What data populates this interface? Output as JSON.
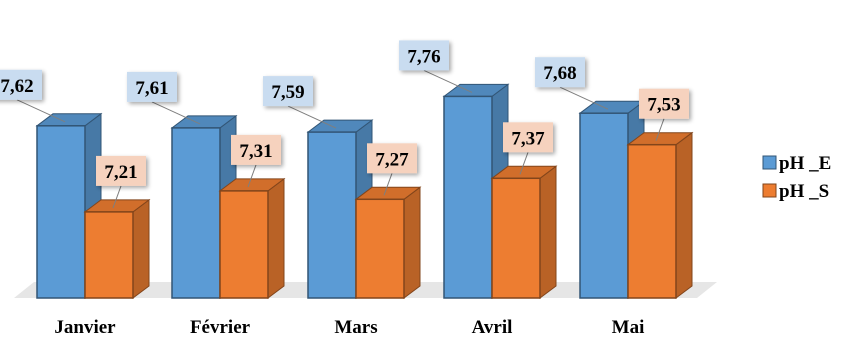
{
  "chart_data": {
    "type": "bar",
    "categories": [
      "Janvier",
      "Février",
      "Mars",
      "Avril",
      "Mai"
    ],
    "series": [
      {
        "name": "pH _E",
        "values": [
          7.62,
          7.61,
          7.59,
          7.76,
          7.68
        ],
        "labels": [
          "7,62",
          "7,61",
          "7,59",
          "7,76",
          "7,68"
        ],
        "color": "#5B9BD5",
        "label_bg": "#C9DCF0"
      },
      {
        "name": "pH _S",
        "values": [
          7.21,
          7.31,
          7.27,
          7.37,
          7.53
        ],
        "labels": [
          "7,21",
          "7,31",
          "7,27",
          "7,37",
          "7,53"
        ],
        "color": "#ED7D31",
        "label_bg": "#F6D2BE"
      }
    ],
    "legend_position": "right",
    "grid": false,
    "style": "3d-clustered"
  }
}
